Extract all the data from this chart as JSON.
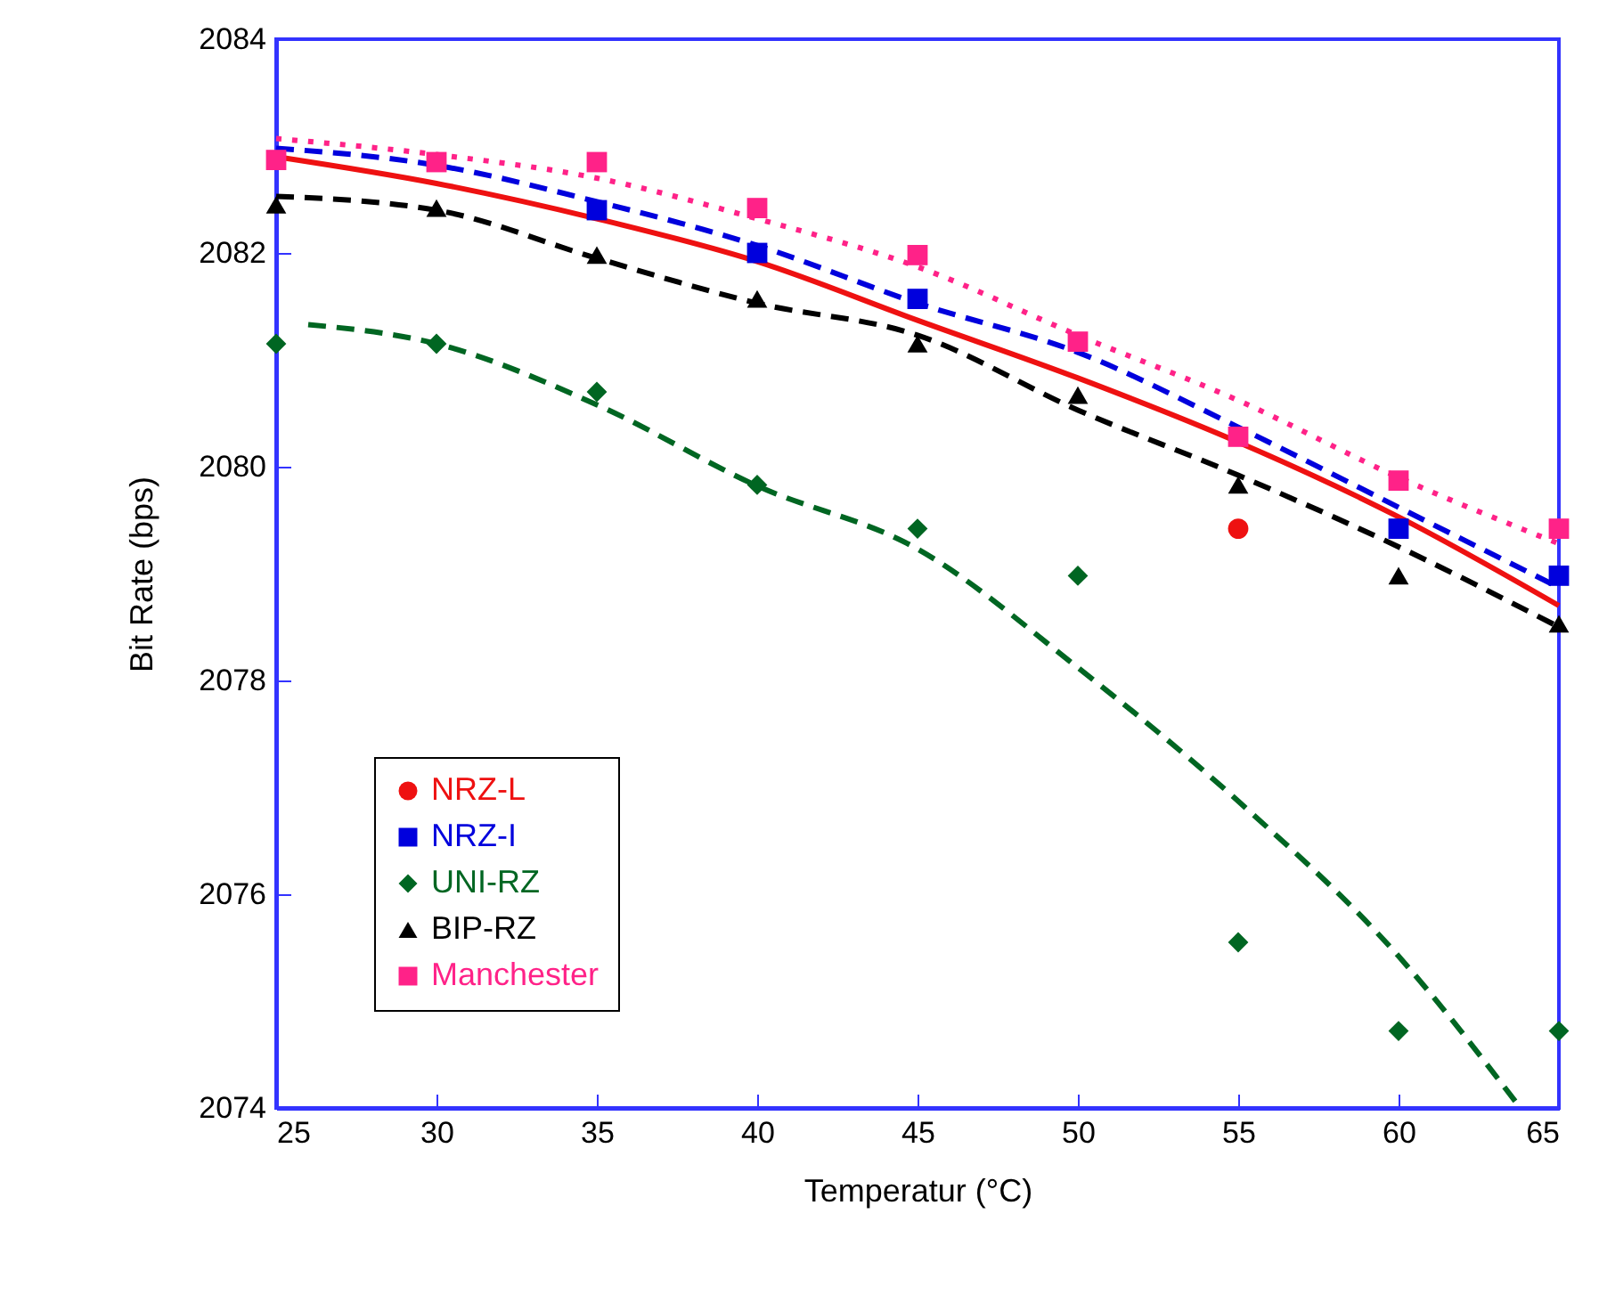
{
  "chart_data": {
    "type": "scatter",
    "xlabel": "Temperatur (°C)",
    "ylabel": "Bit Rate (bps)",
    "x": [
      25,
      30,
      35,
      40,
      45,
      50,
      55,
      60,
      65
    ],
    "xlim": [
      25,
      65
    ],
    "xticks": [
      25,
      30,
      35,
      40,
      45,
      50,
      55,
      60,
      65
    ],
    "ylim": [
      2074,
      2084
    ],
    "yticks": [
      2074,
      2076,
      2078,
      2080,
      2082,
      2084
    ],
    "grid": false,
    "legend": "bottom left",
    "series": [
      {
        "type": "line",
        "color": "#ee1111",
        "line_style": "solid",
        "values": [
          2082.9,
          2082.65,
          2082.32,
          2081.92,
          2081.37,
          2080.83,
          2080.23,
          2079.53,
          2078.7
        ]
      },
      {
        "type": "line",
        "color": "#0000dd",
        "line_style": "dashed",
        "values": [
          2082.98,
          2082.82,
          2082.48,
          2082.07,
          2081.53,
          2081.07,
          2080.37,
          2079.62,
          2078.87
        ]
      },
      {
        "type": "line",
        "color": "#006622",
        "line_style": "dashed",
        "x": [
          26,
          30,
          35,
          40,
          45,
          50,
          55,
          60,
          63.8
        ],
        "values": [
          2081.33,
          2081.15,
          2080.58,
          2079.82,
          2079.23,
          2078.12,
          2076.87,
          2075.42,
          2074.0
        ]
      },
      {
        "type": "line",
        "color": "#000000",
        "line_style": "dashed",
        "values": [
          2082.53,
          2082.4,
          2081.95,
          2081.53,
          2081.23,
          2080.53,
          2079.92,
          2079.25,
          2078.5
        ]
      },
      {
        "type": "line",
        "color": "#ff2288",
        "line_style": "dotted",
        "values": [
          2083.07,
          2082.92,
          2082.7,
          2082.32,
          2081.87,
          2081.23,
          2080.62,
          2079.9,
          2079.28
        ]
      },
      {
        "name": "NRZ-L",
        "type": "scatter",
        "marker": "circle",
        "color": "#ee1111",
        "values": [
          null,
          null,
          null,
          null,
          null,
          null,
          2079.42,
          null,
          null
        ]
      },
      {
        "name": "NRZ-I",
        "type": "scatter",
        "marker": "square",
        "color": "#0000dd",
        "values": [
          null,
          null,
          2082.4,
          2082.0,
          2081.57,
          null,
          null,
          2079.42,
          2078.98
        ]
      },
      {
        "name": "UNI-RZ",
        "type": "scatter",
        "marker": "diamond",
        "color": "#006622",
        "values": [
          2081.15,
          2081.15,
          2080.7,
          2079.83,
          2079.42,
          2078.98,
          2075.55,
          2074.72,
          2074.72
        ]
      },
      {
        "name": "BIP-RZ",
        "type": "scatter",
        "marker": "triangle",
        "color": "#000000",
        "values": [
          2082.45,
          2082.42,
          2081.98,
          2081.57,
          2081.15,
          2080.67,
          2079.83,
          2078.98,
          2078.53
        ]
      },
      {
        "name": "Manchester",
        "type": "scatter",
        "marker": "square",
        "color": "#ff2288",
        "values": [
          2082.87,
          2082.85,
          2082.85,
          2082.42,
          2081.98,
          2081.17,
          2080.28,
          2079.87,
          2079.42
        ]
      }
    ]
  }
}
